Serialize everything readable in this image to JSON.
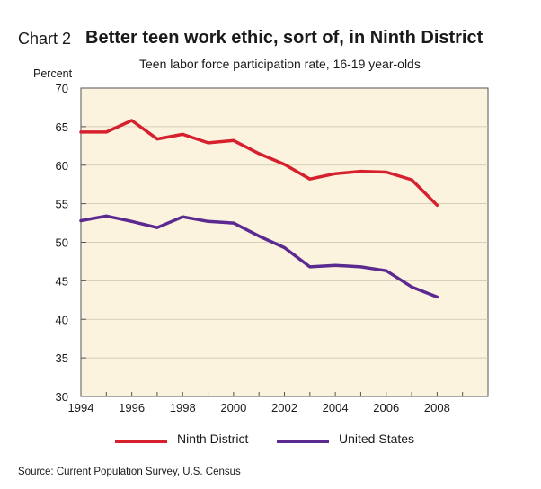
{
  "header": {
    "chart_label": "Chart 2",
    "title": "Better teen work ethic, sort of, in Ninth District",
    "subtitle": "Teen labor force participation rate, 16-19 year-olds"
  },
  "footer": {
    "source": "Source: Current Population Survey, U.S. Census"
  },
  "colors": {
    "plot_bg": "#fbf3dd",
    "ninth": "#d7202e",
    "us": "#5b2a91",
    "grid": "#c9c1ad"
  },
  "chart_data": {
    "type": "line",
    "title": "Better teen work ethic, sort of, in Ninth District",
    "subtitle": "Teen labor force participation rate, 16-19 year-olds",
    "xlabel": "",
    "ylabel": "Percent",
    "ylim": [
      30,
      70
    ],
    "xlim": [
      1994,
      2010
    ],
    "yticks": [
      30,
      35,
      40,
      45,
      50,
      55,
      60,
      65,
      70
    ],
    "xticks": [
      1994,
      1996,
      1998,
      2000,
      2002,
      2004,
      2006,
      2008
    ],
    "grid": true,
    "legend": "bottom",
    "x": [
      1994,
      1995,
      1996,
      1997,
      1998,
      1999,
      2000,
      2001,
      2002,
      2003,
      2004,
      2005,
      2006,
      2007,
      2008
    ],
    "series": [
      {
        "name": "Ninth District",
        "color": "#d7202e",
        "values": [
          64.3,
          64.3,
          65.8,
          63.4,
          64.0,
          62.9,
          63.2,
          61.5,
          60.1,
          58.2,
          58.9,
          59.2,
          59.1,
          58.1,
          54.8
        ]
      },
      {
        "name": "United States",
        "color": "#5b2a91",
        "values": [
          52.8,
          53.4,
          52.7,
          51.9,
          53.3,
          52.7,
          52.5,
          50.8,
          49.3,
          46.8,
          47.0,
          46.8,
          46.3,
          44.2,
          42.9
        ]
      }
    ]
  }
}
